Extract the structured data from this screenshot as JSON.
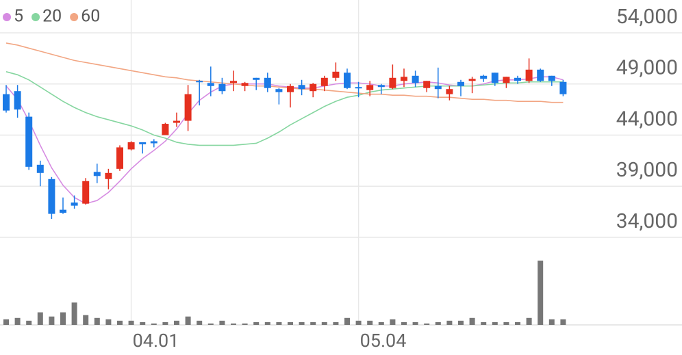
{
  "chart_data": {
    "type": "candlestick",
    "categories": [
      null,
      null,
      null,
      null,
      null,
      null,
      null,
      null,
      null,
      null,
      null,
      "04.01",
      null,
      null,
      null,
      null,
      null,
      null,
      null,
      null,
      null,
      null,
      null,
      null,
      null,
      null,
      null,
      null,
      null,
      null,
      null,
      "05.04",
      null,
      null,
      null,
      null,
      null,
      null,
      null,
      null,
      null,
      null,
      null,
      null,
      null,
      null,
      null,
      null,
      null,
      null
    ],
    "open": [
      48000,
      48300,
      45800,
      41100,
      39700,
      36700,
      37400,
      37300,
      40400,
      39700,
      40700,
      42600,
      43300,
      43400,
      44000,
      45200,
      45400,
      49300,
      49100,
      49000,
      49100,
      48800,
      49600,
      49600,
      48500,
      48200,
      48900,
      48300,
      48800,
      49600,
      50100,
      48700,
      48400,
      48900,
      48600,
      49300,
      49800,
      48600,
      48800,
      48000,
      49200,
      49300,
      49800,
      50100,
      49100,
      49600,
      49300,
      50400,
      49800,
      49200
    ],
    "high": [
      48900,
      48900,
      46200,
      41500,
      39900,
      37900,
      38100,
      39800,
      41200,
      40700,
      43000,
      43400,
      43300,
      43600,
      45200,
      46200,
      48900,
      49400,
      50700,
      49600,
      50300,
      49200,
      49600,
      50100,
      48600,
      49000,
      49400,
      49100,
      49800,
      51100,
      50500,
      49200,
      49300,
      49000,
      50900,
      50500,
      50300,
      49300,
      50600,
      48800,
      49400,
      49700,
      49900,
      50100,
      49700,
      49800,
      51500,
      50500,
      49800,
      49400
    ],
    "low": [
      46200,
      45700,
      40600,
      39000,
      35800,
      36300,
      36800,
      37200,
      39300,
      38700,
      40500,
      42500,
      42200,
      42800,
      44000,
      44800,
      44400,
      46900,
      47800,
      48000,
      48300,
      48300,
      48400,
      48200,
      47000,
      46700,
      47900,
      47700,
      48300,
      49300,
      48500,
      47700,
      47800,
      48000,
      48500,
      48700,
      48700,
      48200,
      47600,
      47400,
      47800,
      48100,
      49200,
      48800,
      48600,
      49000,
      49100,
      49200,
      48800,
      47800
    ],
    "close": [
      46400,
      46500,
      40900,
      40300,
      36300,
      36400,
      37100,
      39500,
      40000,
      40300,
      42800,
      43300,
      43100,
      43200,
      45100,
      45400,
      48000,
      49200,
      48800,
      48300,
      49300,
      49100,
      49400,
      48600,
      48200,
      48800,
      48500,
      49000,
      49600,
      50200,
      48600,
      48600,
      48900,
      48700,
      49600,
      49700,
      49100,
      49300,
      48500,
      48500,
      48800,
      49500,
      49500,
      49100,
      49700,
      49300,
      50400,
      49300,
      49300,
      48000
    ],
    "up_color": "#e5301f",
    "down_color": "#1b7ae6",
    "series": [
      {
        "name": "5",
        "color": "#d68be2",
        "values": [
          48800,
          47500,
          45400,
          43000,
          40800,
          39100,
          37900,
          37300,
          37600,
          38400,
          39500,
          40700,
          41700,
          42500,
          43400,
          44600,
          46100,
          47400,
          48200,
          48800,
          49000,
          49000,
          49000,
          49000,
          48800,
          48700,
          48600,
          48600,
          48800,
          49000,
          49100,
          49100,
          49000,
          48800,
          48800,
          49000,
          49100,
          49200,
          49100,
          48900,
          48800,
          48800,
          49000,
          49300,
          49400,
          49400,
          49500,
          49700,
          49700,
          49400
        ]
      },
      {
        "name": "20",
        "color": "#86d6a0",
        "values": [
          50200,
          49900,
          49400,
          48700,
          48000,
          47300,
          46700,
          46200,
          45800,
          45500,
          45200,
          44900,
          44500,
          44000,
          43700,
          43300,
          43100,
          43000,
          43000,
          43000,
          43000,
          43100,
          43200,
          43700,
          44300,
          45000,
          45600,
          46200,
          46800,
          47300,
          47700,
          47900,
          48200,
          48400,
          48500,
          48600,
          48700,
          48800,
          48800,
          48800,
          48800,
          48800,
          48900,
          49000,
          49100,
          49100,
          49200,
          49200,
          49200,
          49200
        ]
      },
      {
        "name": "60",
        "color": "#f2a683",
        "values": [
          53000,
          52800,
          52500,
          52200,
          51900,
          51600,
          51300,
          51100,
          50900,
          50700,
          50500,
          50300,
          50100,
          49900,
          49700,
          49600,
          49400,
          49300,
          49200,
          49100,
          49000,
          48900,
          48800,
          48800,
          48700,
          48600,
          48500,
          48500,
          48400,
          48300,
          48200,
          48100,
          48000,
          48000,
          47900,
          47900,
          47800,
          47800,
          47700,
          47700,
          47600,
          47500,
          47500,
          47400,
          47400,
          47300,
          47300,
          47300,
          47200,
          47200
        ]
      }
    ],
    "volume": [
      8,
      10,
      6,
      18,
      12,
      18,
      32,
      14,
      10,
      8,
      6,
      6,
      4,
      2,
      4,
      6,
      12,
      6,
      2,
      6,
      2,
      2,
      4,
      4,
      4,
      4,
      4,
      4,
      4,
      4,
      10,
      6,
      6,
      4,
      8,
      4,
      4,
      2,
      4,
      6,
      6,
      10,
      4,
      4,
      4,
      4,
      10,
      92,
      8,
      8
    ],
    "volume_color": "#777777",
    "ylim": [
      34000,
      54000
    ],
    "yticks": [
      {
        "value": 34000,
        "label": "34,000"
      },
      {
        "value": 39000,
        "label": "39,000"
      },
      {
        "value": 44000,
        "label": "44,000"
      },
      {
        "value": 49000,
        "label": "49,000"
      },
      {
        "value": 54000,
        "label": "54,000"
      }
    ],
    "grid": true
  }
}
